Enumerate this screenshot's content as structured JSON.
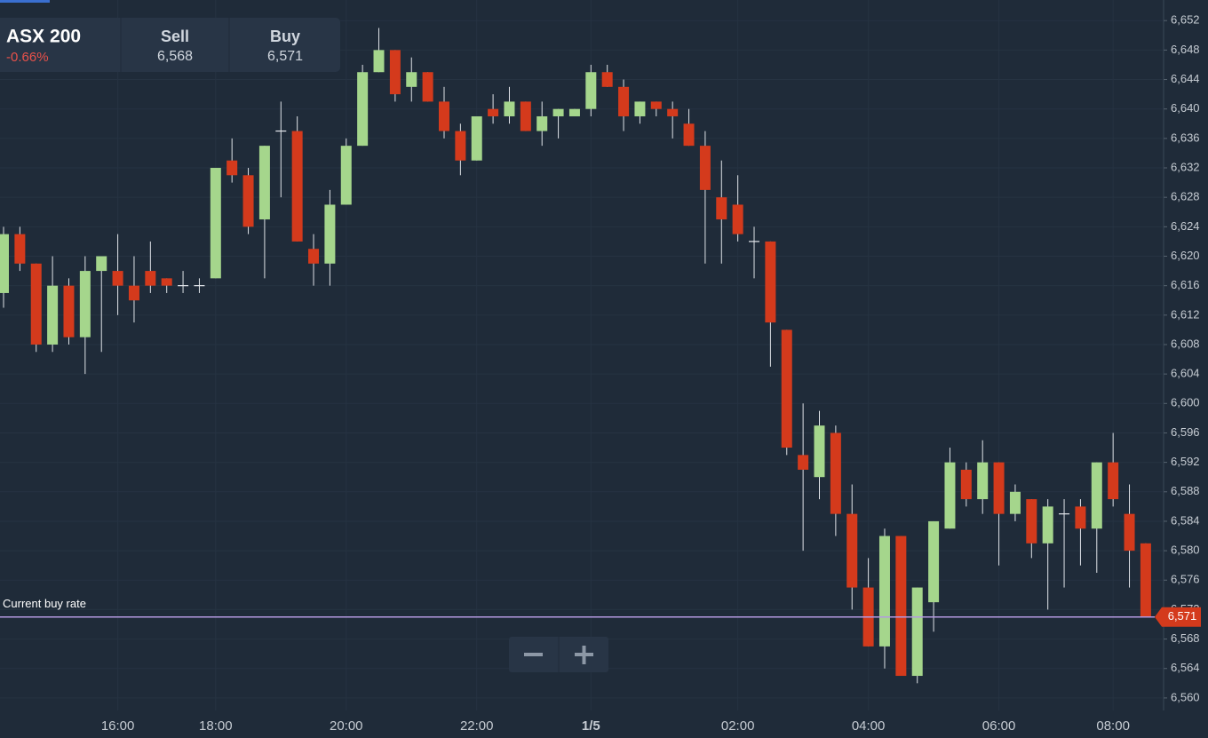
{
  "instrument": {
    "name": "ASX 200",
    "change": "-0.66%",
    "sell_label": "Sell",
    "sell": "6,568",
    "buy_label": "Buy",
    "buy": "6,571"
  },
  "chart_data": {
    "type": "candlestick",
    "categories": [
      null,
      null,
      null,
      null,
      null,
      null,
      null,
      "16:00",
      null,
      null,
      null,
      null,
      null,
      "18:00",
      null,
      null,
      null,
      null,
      null,
      null,
      null,
      "20:00",
      null,
      null,
      null,
      null,
      null,
      null,
      null,
      "22:00",
      null,
      null,
      null,
      null,
      null,
      null,
      "1/5",
      null,
      null,
      null,
      null,
      null,
      null,
      null,
      null,
      "02:00",
      null,
      null,
      null,
      null,
      null,
      null,
      null,
      "04:00",
      null,
      null,
      null,
      null,
      null,
      null,
      null,
      "06:00",
      null,
      null,
      null,
      null,
      null,
      null,
      "08:00",
      null,
      null
    ],
    "open": [
      6615,
      6623,
      6619,
      6608,
      6616,
      6609,
      6618,
      6618,
      6616,
      6618,
      6617,
      6616,
      6616,
      6617,
      6633,
      6631,
      6625,
      6637,
      6637,
      6621,
      6619,
      6627,
      6635,
      6645,
      6648,
      6643,
      6645,
      6641,
      6637,
      6633,
      6640,
      6639,
      6641,
      6637,
      6639,
      6639,
      6640,
      6645,
      6643,
      6639,
      6641,
      6640,
      6638,
      6635,
      6628,
      6627,
      6622,
      6622,
      6610,
      6593,
      6590,
      6596,
      6585,
      6575,
      6567,
      6582,
      6563,
      6573,
      6583,
      6591,
      6587,
      6592,
      6585,
      6587,
      6581,
      6585,
      6586,
      6583,
      6592,
      6585,
      6581
    ],
    "high": [
      6624,
      6624,
      6619,
      6620,
      6617,
      6620,
      6620,
      6623,
      6620,
      6622,
      6617,
      6618,
      6617,
      6632,
      6636,
      6632,
      6635,
      6641,
      6639,
      6623,
      6629,
      6636,
      6646,
      6651,
      6648,
      6647,
      6645,
      6643,
      6638,
      6639,
      6642,
      6643,
      6641,
      6641,
      6640,
      6640,
      6646,
      6646,
      6644,
      6641,
      6641,
      6641,
      6640,
      6637,
      6633,
      6631,
      6624,
      6622,
      6610,
      6600,
      6599,
      6597,
      6589,
      6579,
      6583,
      6582,
      6575,
      6584,
      6594,
      6592,
      6595,
      6592,
      6589,
      6587,
      6587,
      6587,
      6587,
      6592,
      6596,
      6589,
      6581
    ],
    "low": [
      6613,
      6618,
      6607,
      6607,
      6608,
      6604,
      6607,
      6612,
      6611,
      6615,
      6615,
      6615,
      6615,
      6617,
      6630,
      6623,
      6617,
      6628,
      6622,
      6616,
      6616,
      6627,
      6635,
      6645,
      6641,
      6641,
      6641,
      6636,
      6631,
      6633,
      6638,
      6638,
      6637,
      6635,
      6636,
      6639,
      6639,
      6643,
      6637,
      6638,
      6639,
      6636,
      6635,
      6619,
      6619,
      6622,
      6617,
      6605,
      6593,
      6580,
      6587,
      6582,
      6572,
      6567,
      6564,
      6563,
      6562,
      6569,
      6583,
      6586,
      6585,
      6578,
      6584,
      6579,
      6572,
      6575,
      6578,
      6577,
      6586,
      6575,
      6571
    ],
    "close": [
      6623,
      6619,
      6608,
      6616,
      6609,
      6618,
      6620,
      6616,
      6614,
      6616,
      6616,
      6616,
      6616,
      6632,
      6631,
      6624,
      6635,
      6637,
      6622,
      6619,
      6627,
      6635,
      6645,
      6648,
      6642,
      6645,
      6641,
      6637,
      6633,
      6639,
      6639,
      6641,
      6637,
      6639,
      6640,
      6640,
      6645,
      6643,
      6639,
      6641,
      6640,
      6639,
      6635,
      6629,
      6625,
      6623,
      6622,
      6611,
      6594,
      6591,
      6597,
      6585,
      6575,
      6567,
      6582,
      6563,
      6575,
      6584,
      6592,
      6587,
      6592,
      6585,
      6588,
      6581,
      6586,
      6585,
      6583,
      6592,
      6587,
      6580,
      6571
    ],
    "up_color": "#a5d68c",
    "down_color": "#d43a1c",
    "ylim": [
      6558.3,
      6654.8
    ],
    "yticks": [
      {
        "value": 6560,
        "label": "6,560"
      },
      {
        "value": 6564,
        "label": "6,564"
      },
      {
        "value": 6568,
        "label": "6,568"
      },
      {
        "value": 6572,
        "label": "6,572"
      },
      {
        "value": 6576,
        "label": "6,576"
      },
      {
        "value": 6580,
        "label": "6,580"
      },
      {
        "value": 6584,
        "label": "6,584"
      },
      {
        "value": 6588,
        "label": "6,588"
      },
      {
        "value": 6592,
        "label": "6,592"
      },
      {
        "value": 6596,
        "label": "6,596"
      },
      {
        "value": 6600,
        "label": "6,600"
      },
      {
        "value": 6604,
        "label": "6,604"
      },
      {
        "value": 6608,
        "label": "6,608"
      },
      {
        "value": 6612,
        "label": "6,612"
      },
      {
        "value": 6616,
        "label": "6,616"
      },
      {
        "value": 6620,
        "label": "6,620"
      },
      {
        "value": 6624,
        "label": "6,624"
      },
      {
        "value": 6628,
        "label": "6,628"
      },
      {
        "value": 6632,
        "label": "6,632"
      },
      {
        "value": 6636,
        "label": "6,636"
      },
      {
        "value": 6640,
        "label": "6,640"
      },
      {
        "value": 6644,
        "label": "6,644"
      },
      {
        "value": 6648,
        "label": "6,648"
      },
      {
        "value": 6652,
        "label": "6,652"
      }
    ],
    "grid": true,
    "current_buy_rate": {
      "label": "Current buy rate",
      "value": 6571,
      "value_label": "6,571",
      "color": "#b49ae0"
    }
  }
}
